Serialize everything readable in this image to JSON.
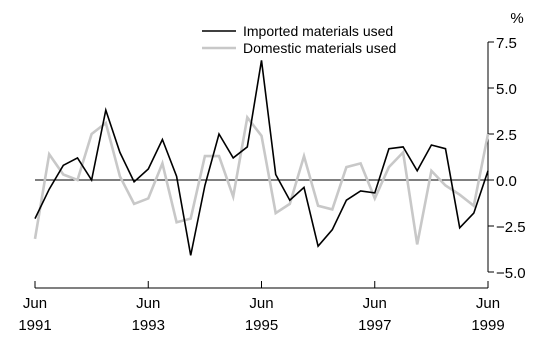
{
  "chart_data": {
    "type": "line",
    "unit_label": "%",
    "ylim": [
      -5.0,
      7.5
    ],
    "y_ticks": [
      7.5,
      5.0,
      2.5,
      0.0,
      -2.5,
      -5.0
    ],
    "y_tick_labels": [
      "7.5",
      "5.0",
      "2.5",
      "0.0",
      "−2.5",
      "−5.0"
    ],
    "y_axis_side": "right",
    "x_range": [
      1991.5,
      1999.5
    ],
    "x_ticks": [
      {
        "value": 1991.5,
        "month": "Jun",
        "year": "1991"
      },
      {
        "value": 1993.5,
        "month": "Jun",
        "year": "1993"
      },
      {
        "value": 1995.5,
        "month": "Jun",
        "year": "1995"
      },
      {
        "value": 1997.5,
        "month": "Jun",
        "year": "1997"
      },
      {
        "value": 1999.5,
        "month": "Jun",
        "year": "1999"
      }
    ],
    "zero_line": true,
    "legend_position": "top-center",
    "series": [
      {
        "name": "Imported materials used",
        "color": "#000000",
        "x": [
          1991.5,
          1991.75,
          1992.0,
          1992.25,
          1992.5,
          1992.75,
          1993.0,
          1993.25,
          1993.5,
          1993.75,
          1994.0,
          1994.25,
          1994.5,
          1994.75,
          1995.0,
          1995.25,
          1995.5,
          1995.75,
          1996.0,
          1996.25,
          1996.5,
          1996.75,
          1997.0,
          1997.25,
          1997.5,
          1997.75,
          1998.0,
          1998.25,
          1998.5,
          1998.75,
          1999.0,
          1999.25,
          1999.5
        ],
        "values": [
          -2.1,
          -0.5,
          0.8,
          1.2,
          0.0,
          3.8,
          1.5,
          -0.1,
          0.6,
          2.2,
          0.2,
          -4.1,
          -0.3,
          2.5,
          1.2,
          1.8,
          6.5,
          0.3,
          -1.1,
          -0.4,
          -3.6,
          -2.7,
          -1.1,
          -0.6,
          -0.7,
          1.7,
          1.8,
          0.5,
          1.9,
          1.7,
          -2.6,
          -1.8,
          0.5
        ]
      },
      {
        "name": "Domestic materials used",
        "color": "#c8c8c8",
        "x": [
          1991.5,
          1991.75,
          1992.0,
          1992.25,
          1992.5,
          1992.75,
          1993.0,
          1993.25,
          1993.5,
          1993.75,
          1994.0,
          1994.25,
          1994.5,
          1994.75,
          1995.0,
          1995.25,
          1995.5,
          1995.75,
          1996.0,
          1996.25,
          1996.5,
          1996.75,
          1997.0,
          1997.25,
          1997.5,
          1997.75,
          1998.0,
          1998.25,
          1998.5,
          1998.75,
          1999.0,
          1999.25,
          1999.5
        ],
        "values": [
          -3.2,
          1.4,
          0.3,
          0.0,
          2.5,
          3.1,
          0.2,
          -1.3,
          -1.0,
          0.9,
          -2.3,
          -2.1,
          1.3,
          1.3,
          -0.9,
          3.4,
          2.4,
          -1.8,
          -1.3,
          1.3,
          -1.4,
          -1.6,
          0.7,
          0.9,
          -1.0,
          0.7,
          1.5,
          -3.5,
          0.5,
          -0.3,
          -0.8,
          -1.4,
          2.5
        ]
      }
    ]
  }
}
